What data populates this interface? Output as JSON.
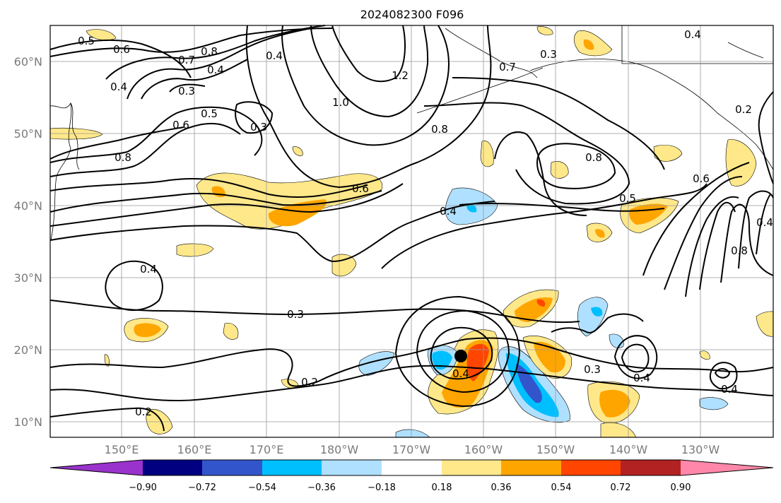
{
  "title": "2024082300 F096",
  "lat_labels": [
    "60°N",
    "50°N",
    "40°N",
    "30°N",
    "20°N",
    "10°N"
  ],
  "lon_labels": [
    "150°E",
    "160°E",
    "170°E",
    "180°W",
    "170°W",
    "160°W",
    "150°W",
    "140°W",
    "130°W"
  ],
  "contour_labels": [
    "0.5",
    "0.6",
    "0.7",
    "0.8",
    "0.4",
    "0.3",
    "0.4",
    "0.5",
    "0.6",
    "1.0",
    "1.2",
    "0.3",
    "0.7",
    "0.8",
    "0.8",
    "0.6",
    "0.4",
    "0.4",
    "0.5",
    "0.6",
    "0.8",
    "0.3",
    "0.2",
    "0.2",
    "0.4",
    "0.3",
    "0.4",
    "0.4",
    "0.8",
    "0.4",
    "0.3",
    "0.2",
    "0.4",
    "0.4"
  ],
  "colorbar": {
    "tick_labels": [
      "−0.90",
      "−0.72",
      "−0.54",
      "−0.36",
      "−0.18",
      "0.18",
      "0.36",
      "0.54",
      "0.72",
      "0.90"
    ],
    "colors": [
      "#9933cc",
      "#000080",
      "#3355cc",
      "#00bfff",
      "#b0e0ff",
      "#ffffff",
      "#ffe88a",
      "#ffa500",
      "#ff4500",
      "#b22222",
      "#ff88aa"
    ]
  }
}
